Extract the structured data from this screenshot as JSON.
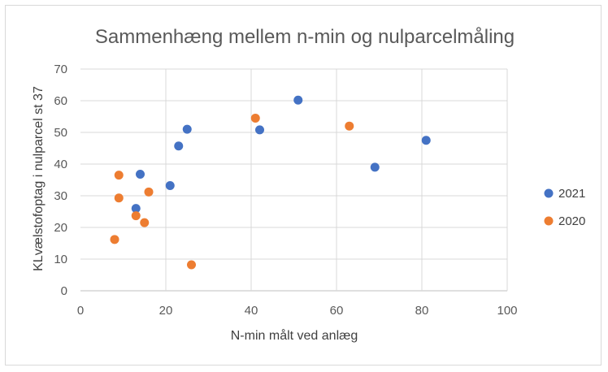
{
  "chart_data": {
    "type": "scatter",
    "title": "Sammenhæng mellem n-min og nulparcelmåling",
    "xlabel": "N-min målt ved anlæg",
    "ylabel": "KLvælstofoptag i nulparcel st 37",
    "xlim": [
      0,
      100
    ],
    "ylim": [
      0,
      70
    ],
    "x_ticks": [
      "0",
      "20",
      "40",
      "60",
      "80",
      "100"
    ],
    "y_ticks": [
      "0",
      "10",
      "20",
      "30",
      "40",
      "50",
      "60",
      "70"
    ],
    "grid": true,
    "legend_position": "right",
    "series": [
      {
        "name": "2021",
        "color": "#4472C4",
        "points": [
          {
            "x": 13,
            "y": 26
          },
          {
            "x": 14,
            "y": 36.8
          },
          {
            "x": 21,
            "y": 33.2
          },
          {
            "x": 23,
            "y": 45.7
          },
          {
            "x": 25,
            "y": 51
          },
          {
            "x": 42,
            "y": 50.8
          },
          {
            "x": 51,
            "y": 60.2
          },
          {
            "x": 69,
            "y": 39
          },
          {
            "x": 81,
            "y": 47.5
          }
        ]
      },
      {
        "name": "2020",
        "color": "#ED7D31",
        "points": [
          {
            "x": 8,
            "y": 16.2
          },
          {
            "x": 9,
            "y": 36.5
          },
          {
            "x": 9,
            "y": 29.3
          },
          {
            "x": 13,
            "y": 23.7
          },
          {
            "x": 15,
            "y": 21.5
          },
          {
            "x": 16,
            "y": 31.2
          },
          {
            "x": 26,
            "y": 8.2
          },
          {
            "x": 41,
            "y": 54.5
          },
          {
            "x": 63,
            "y": 52
          }
        ]
      }
    ]
  }
}
